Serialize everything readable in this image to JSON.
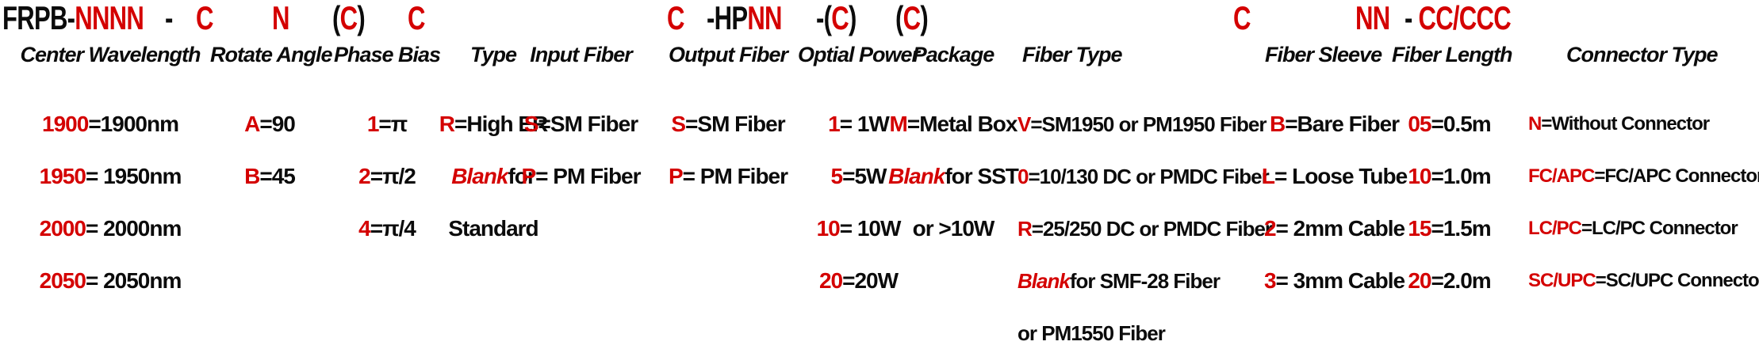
{
  "colors": {
    "accent_red": "#d40000",
    "text_black": "#0b0b0b"
  },
  "code": {
    "family": {
      "black": "FRPB-",
      "red": "NNNN"
    },
    "separator": "-",
    "rotate_angle": "C",
    "phase_bias": "N",
    "type": {
      "open": "(",
      "red": "C",
      "close": ")"
    },
    "input_fiber": "C",
    "output_fiber": "C",
    "optical_power": {
      "black": "-HP",
      "red": "NN"
    },
    "package": {
      "open": "-(",
      "red": "C",
      "close": ")"
    },
    "fiber_type": {
      "open": "(",
      "red": "C",
      "close": ")"
    },
    "fiber_sleeve": "C",
    "fiber_length": "NN",
    "connector_type": {
      "black": "- ",
      "red": "CC/CCC"
    }
  },
  "columns": [
    {
      "id": "center-wavelength",
      "title": "Center Wavelength",
      "rows": [
        [
          {
            "t": "1900",
            "c": "r"
          },
          {
            "t": "=1900nm"
          }
        ],
        [
          {
            "t": "1950",
            "c": "r"
          },
          {
            "t": "= 1950nm"
          }
        ],
        [
          {
            "t": "2000",
            "c": "r"
          },
          {
            "t": "= 2000nm"
          }
        ],
        [
          {
            "t": "2050",
            "c": "r"
          },
          {
            "t": "= 2050nm"
          }
        ]
      ]
    },
    {
      "id": "rotate-angle",
      "title": "Rotate Angle",
      "rows": [
        [
          {
            "t": "A",
            "c": "r"
          },
          {
            "t": "=90"
          }
        ],
        [
          {
            "t": "B",
            "c": "r"
          },
          {
            "t": "=45"
          }
        ]
      ]
    },
    {
      "id": "phase-bias",
      "title": "Phase Bias",
      "rows": [
        [
          {
            "t": "1",
            "c": "r"
          },
          {
            "t": "=π"
          }
        ],
        [
          {
            "t": "2",
            "c": "r"
          },
          {
            "t": "=π/2"
          }
        ],
        [
          {
            "t": "4",
            "c": "r"
          },
          {
            "t": "=π/4"
          }
        ]
      ]
    },
    {
      "id": "type",
      "title": "Type",
      "rows": [
        [
          {
            "t": "R",
            "c": "r"
          },
          {
            "t": "=High ER"
          }
        ],
        [
          {
            "t": "Blank",
            "c": "r",
            "i": true
          },
          {
            "t": " for"
          }
        ],
        [
          {
            "t": "Standard"
          }
        ]
      ]
    },
    {
      "id": "input-fiber",
      "title": "Input Fiber",
      "rows": [
        [
          {
            "t": "S",
            "c": "r"
          },
          {
            "t": "=SM Fiber"
          }
        ],
        [
          {
            "t": "P",
            "c": "r"
          },
          {
            "t": "= PM Fiber"
          }
        ]
      ]
    },
    {
      "id": "output-fiber",
      "title": "Output Fiber",
      "rows": [
        [
          {
            "t": "S",
            "c": "r"
          },
          {
            "t": "=SM Fiber"
          }
        ],
        [
          {
            "t": "P",
            "c": "r"
          },
          {
            "t": "= PM Fiber"
          }
        ]
      ]
    },
    {
      "id": "optical-power",
      "title": "Optial Power",
      "rows": [
        [
          {
            "t": "1",
            "c": "r"
          },
          {
            "t": "= 1W"
          }
        ],
        [
          {
            "t": "5",
            "c": "r"
          },
          {
            "t": "=5W"
          }
        ],
        [
          {
            "t": "10",
            "c": "r"
          },
          {
            "t": "= 10W"
          }
        ],
        [
          {
            "t": "20",
            "c": "r"
          },
          {
            "t": "=20W"
          }
        ]
      ]
    },
    {
      "id": "package",
      "title": "Package",
      "rows": [
        [
          {
            "t": "M",
            "c": "r"
          },
          {
            "t": "=Metal Box"
          }
        ],
        [
          {
            "t": "Blank",
            "c": "r",
            "i": true
          },
          {
            "t": " for SST"
          }
        ],
        [
          {
            "t": "or >10W"
          }
        ]
      ]
    },
    {
      "id": "fiber-type",
      "title": "Fiber Type",
      "rows": [
        [
          {
            "t": "V",
            "c": "r"
          },
          {
            "t": "=SM1950 or PM1950 Fiber"
          }
        ],
        [
          {
            "t": "0",
            "c": "r"
          },
          {
            "t": "=10/130 DC or PMDC Fiber"
          }
        ],
        [
          {
            "t": "R",
            "c": "r"
          },
          {
            "t": "=25/250 DC or PMDC Fiber"
          }
        ],
        [
          {
            "t": "Blank",
            "c": "r",
            "i": true
          },
          {
            "t": " for SMF-28 Fiber"
          }
        ],
        [
          {
            "t": "or PM1550 Fiber"
          }
        ]
      ]
    },
    {
      "id": "fiber-sleeve",
      "title": "Fiber Sleeve",
      "rows": [
        [
          {
            "t": "B",
            "c": "r"
          },
          {
            "t": "=Bare Fiber"
          }
        ],
        [
          {
            "t": "L",
            "c": "r"
          },
          {
            "t": "= Loose Tube"
          }
        ],
        [
          {
            "t": "2",
            "c": "r"
          },
          {
            "t": "= 2mm Cable"
          }
        ],
        [
          {
            "t": "3",
            "c": "r"
          },
          {
            "t": "= 3mm Cable"
          }
        ]
      ]
    },
    {
      "id": "fiber-length",
      "title": "Fiber Length",
      "rows": [
        [
          {
            "t": "05",
            "c": "r"
          },
          {
            "t": "=0.5m"
          }
        ],
        [
          {
            "t": "10",
            "c": "r"
          },
          {
            "t": "=1.0m"
          }
        ],
        [
          {
            "t": "15",
            "c": "r"
          },
          {
            "t": "=1.5m"
          }
        ],
        [
          {
            "t": "20",
            "c": "r"
          },
          {
            "t": "=2.0m"
          }
        ]
      ]
    },
    {
      "id": "connector-type",
      "title": "Connector Type",
      "rows": [
        [
          {
            "t": "N",
            "c": "r"
          },
          {
            "t": "=Without Connector"
          }
        ],
        [
          {
            "t": "FC/APC",
            "c": "r"
          },
          {
            "t": "=FC/APC Connector"
          }
        ],
        [
          {
            "t": "LC/PC",
            "c": "r"
          },
          {
            "t": "=LC/PC Connector"
          }
        ],
        [
          {
            "t": "SC/UPC",
            "c": "r"
          },
          {
            "t": "=SC/UPC Connector"
          }
        ]
      ]
    }
  ]
}
